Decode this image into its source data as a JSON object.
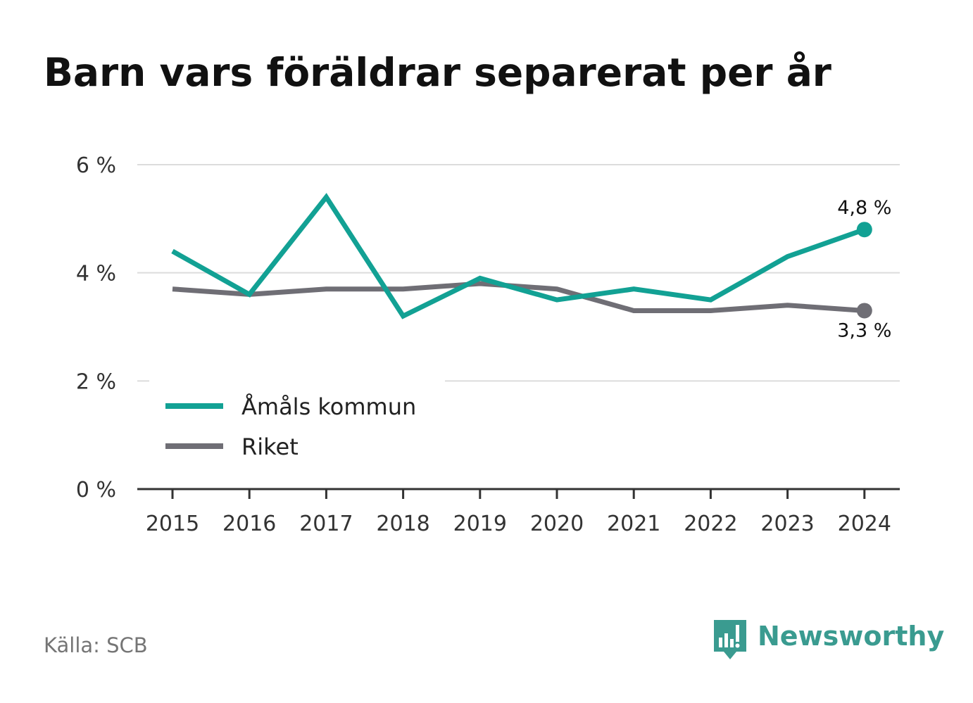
{
  "title": "Barn vars föräldrar separerat per år",
  "source": "Källa: SCB",
  "brand": {
    "name": "Newsworthy",
    "icon": "newsworthy-logo-icon",
    "color": "#3a9b90"
  },
  "chart_data": {
    "type": "line",
    "title": "Barn vars föräldrar separerat per år",
    "xlabel": "",
    "ylabel": "",
    "x": [
      "2015",
      "2016",
      "2017",
      "2018",
      "2019",
      "2020",
      "2021",
      "2022",
      "2023",
      "2024"
    ],
    "ylim": [
      0,
      6
    ],
    "yticks": [
      0,
      2,
      4,
      6
    ],
    "ytick_labels": [
      "0 %",
      "2 %",
      "4 %",
      "6 %"
    ],
    "grid": true,
    "legend_position": "bottom-left",
    "series": [
      {
        "name": "Åmåls kommun",
        "color": "#12a194",
        "values": [
          4.4,
          3.6,
          5.4,
          3.2,
          3.9,
          3.5,
          3.7,
          3.5,
          4.3,
          4.8
        ],
        "end_label": "4,8 %"
      },
      {
        "name": "Riket",
        "color": "#6f6e75",
        "values": [
          3.7,
          3.6,
          3.7,
          3.7,
          3.8,
          3.7,
          3.3,
          3.3,
          3.4,
          3.3
        ],
        "end_label": "3,3 %"
      }
    ]
  }
}
